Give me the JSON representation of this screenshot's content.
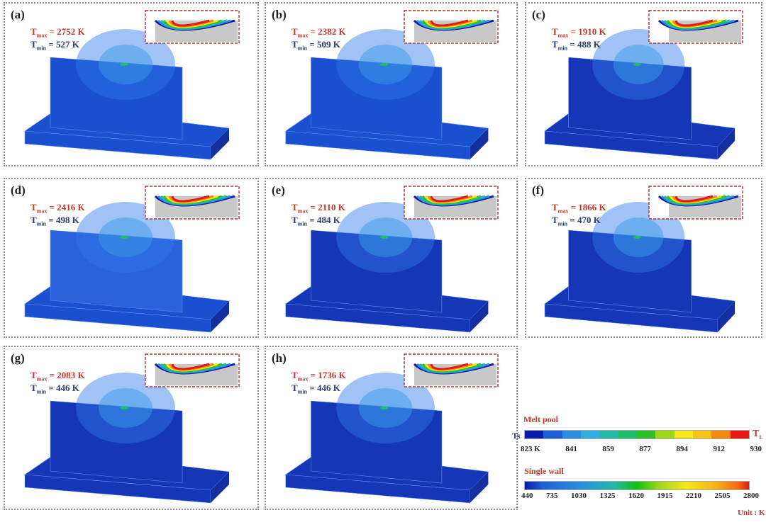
{
  "panels": [
    {
      "label": "(a)",
      "tmax": "2752 K",
      "tmin": "527 K"
    },
    {
      "label": "(b)",
      "tmax": "2382 K",
      "tmin": "509 K"
    },
    {
      "label": "(c)",
      "tmax": "1910 K",
      "tmin": "488 K"
    },
    {
      "label": "(d)",
      "tmax": "2416 K",
      "tmin": "498 K"
    },
    {
      "label": "(e)",
      "tmax": "2110 K",
      "tmin": "484 K"
    },
    {
      "label": "(f)",
      "tmax": "1866 K",
      "tmin": "470 K"
    },
    {
      "label": "(g)",
      "tmax": "2083 K",
      "tmin": "446 K"
    },
    {
      "label": "(h)",
      "tmax": "1736 K",
      "tmin": "446 K"
    }
  ],
  "symbols": {
    "t": "T",
    "max_sub": "max",
    "min_sub": "min",
    "eq": " = "
  },
  "legend": {
    "melt_pool": {
      "title": "Melt pool",
      "left_label": "Ts",
      "right_label": "T",
      "right_sub": "L",
      "ticks": [
        "823 K",
        "841",
        "859",
        "877",
        "894",
        "912",
        "930"
      ],
      "colors": [
        "#0a1aa8",
        "#1f5fd6",
        "#2a8fe0",
        "#30aee0",
        "#22b8a8",
        "#1fbf6a",
        "#2ec22a",
        "#9fd61a",
        "#f4e81a",
        "#f6c21a",
        "#f58a12",
        "#e41a10"
      ]
    },
    "single_wall": {
      "title": "Single wall",
      "ticks": [
        "440",
        "735",
        "1030",
        "1325",
        "1620",
        "1915",
        "2210",
        "2505",
        "2800"
      ]
    },
    "unit": "Unit : K"
  },
  "colors": {
    "title_red": "#c0392b",
    "wall_blue": "#1a4fd0",
    "dark_blue": "#1636b8"
  }
}
